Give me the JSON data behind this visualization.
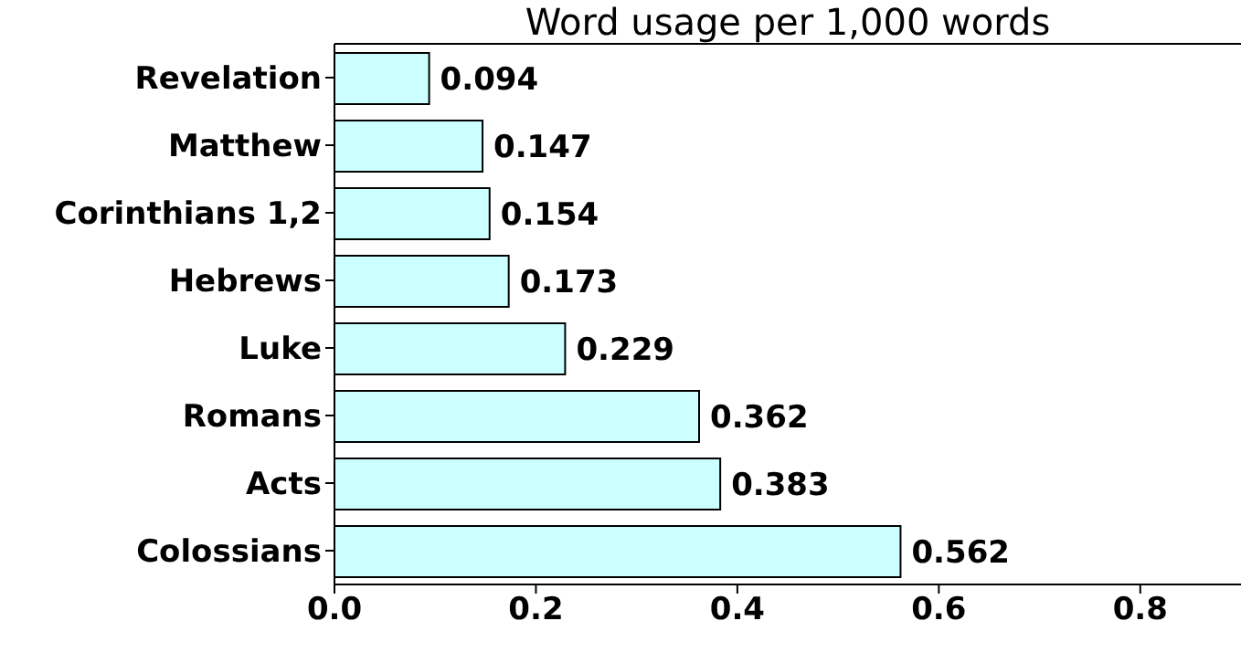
{
  "chart_data": {
    "type": "bar",
    "orientation": "horizontal",
    "title": "Word usage per 1,000 words",
    "categories": [
      "Revelation",
      "Matthew",
      "Corinthians 1,2",
      "Hebrews",
      "Luke",
      "Romans",
      "Acts",
      "Colossians"
    ],
    "values": [
      0.094,
      0.147,
      0.154,
      0.173,
      0.229,
      0.362,
      0.383,
      0.562
    ],
    "color": "#ccffff",
    "xlim": [
      0,
      0.9
    ],
    "xticks": [
      {
        "value": 0,
        "label": "0.0"
      },
      {
        "value": 0.2,
        "label": "0.2"
      },
      {
        "value": 0.4,
        "label": "0.4"
      },
      {
        "value": 0.6,
        "label": "0.6"
      },
      {
        "value": 0.8,
        "label": "0.8"
      }
    ],
    "data_labels": true
  }
}
